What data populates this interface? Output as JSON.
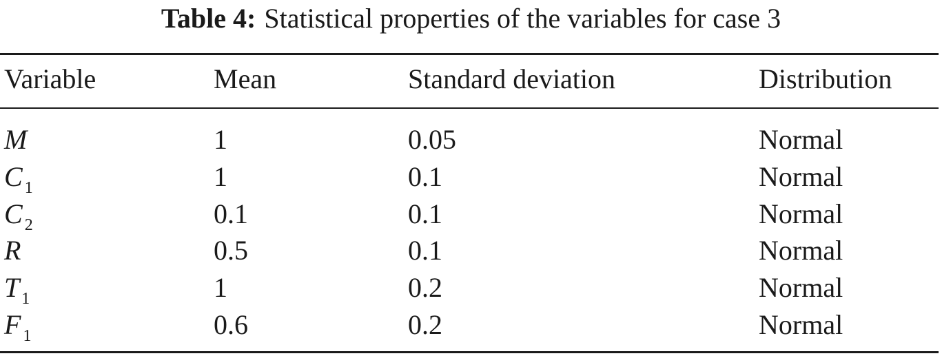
{
  "caption": {
    "label": "Table 4:",
    "text": "Statistical properties of the variables for case 3"
  },
  "table": {
    "headers": [
      "Variable",
      "Mean",
      "Standard deviation",
      "Distribution"
    ],
    "rows": [
      {
        "variable": "M",
        "subscript": "",
        "mean": "1",
        "std": "0.05",
        "distribution": "Normal"
      },
      {
        "variable": "C",
        "subscript": "1",
        "mean": "1",
        "std": "0.1",
        "distribution": "Normal"
      },
      {
        "variable": "C",
        "subscript": "2",
        "mean": "0.1",
        "std": "0.1",
        "distribution": "Normal"
      },
      {
        "variable": "R",
        "subscript": "",
        "mean": "0.5",
        "std": "0.1",
        "distribution": "Normal"
      },
      {
        "variable": "T",
        "subscript": "1",
        "mean": "1",
        "std": "0.2",
        "distribution": "Normal"
      },
      {
        "variable": "F",
        "subscript": "1",
        "mean": "0.6",
        "std": "0.2",
        "distribution": "Normal"
      }
    ]
  }
}
